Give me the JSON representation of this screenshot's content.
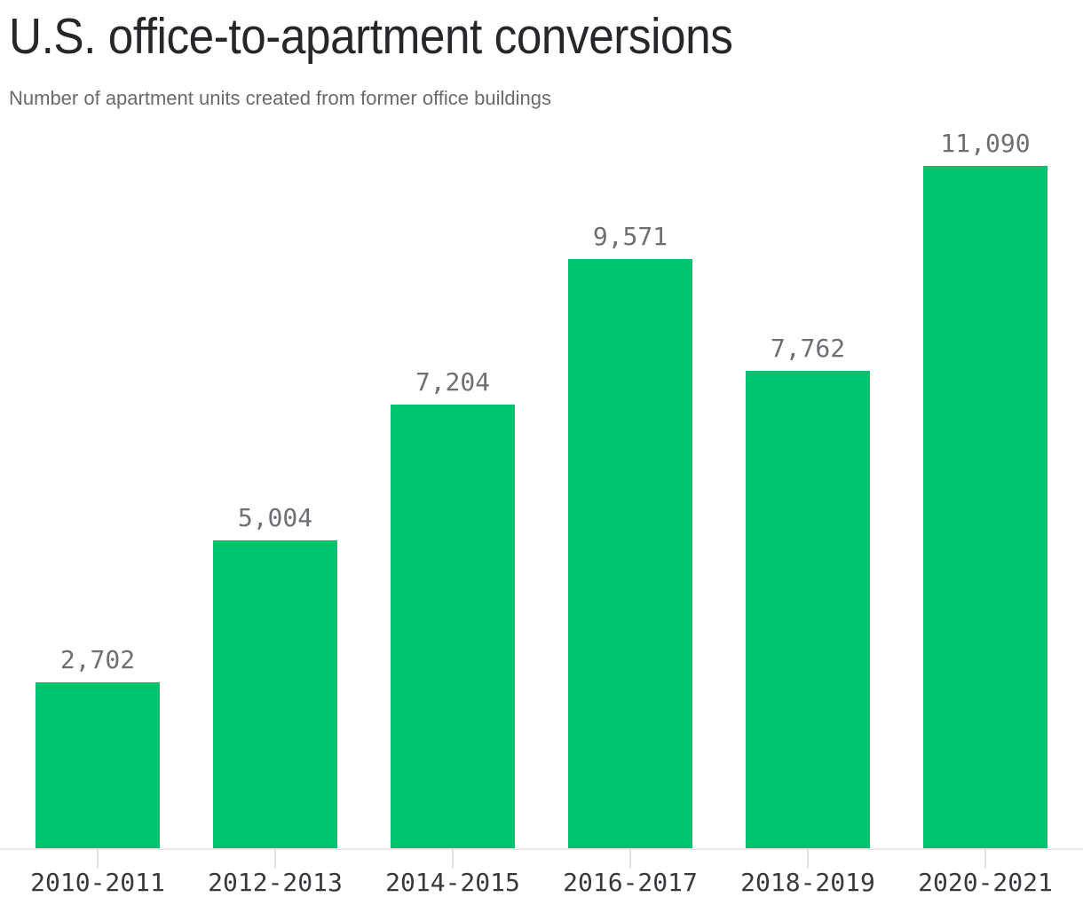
{
  "chart": {
    "title": "U.S. office-to-apartment conversions",
    "subtitle": "Number of apartment units created from former office buildings"
  },
  "chart_data": {
    "type": "bar",
    "title": "U.S. office-to-apartment conversions",
    "subtitle": "Number of apartment units created from former office buildings",
    "categories": [
      "2010-2011",
      "2012-2013",
      "2014-2015",
      "2016-2017",
      "2018-2019",
      "2020-2021"
    ],
    "values": [
      2702,
      5004,
      7204,
      9571,
      7762,
      11090
    ],
    "value_labels": [
      "2,702",
      "5,004",
      "7,204",
      "9,571",
      "7,762",
      "11,090"
    ],
    "xlabel": "",
    "ylabel": "",
    "ylim": [
      0,
      11090
    ],
    "grid": false,
    "legend": "none",
    "colors": {
      "bar": "#00c46e",
      "title": "#26262b",
      "subtitle": "#69696f",
      "value_label": "#6e6e75",
      "axis_label": "#38383e",
      "baseline": "#e9e9eb",
      "tick": "#dfdfe2"
    }
  }
}
